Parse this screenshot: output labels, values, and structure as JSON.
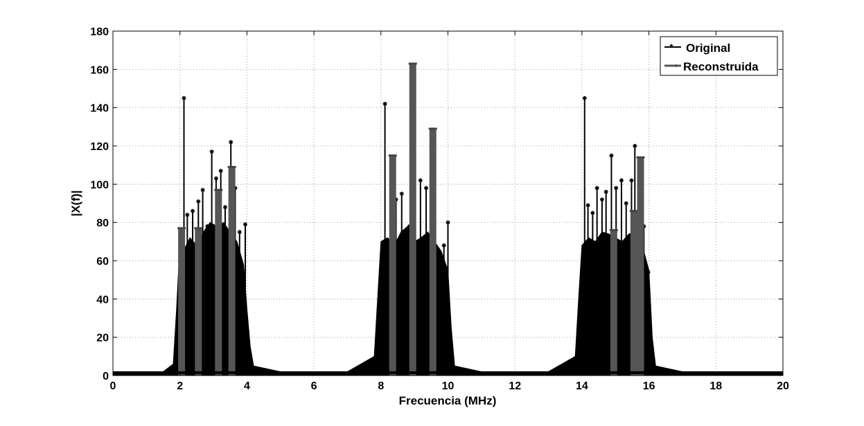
{
  "chart_data": {
    "type": "line",
    "title": "",
    "xlabel": "Frecuencia (MHz)",
    "ylabel": "|X(f)|",
    "xlim": [
      0,
      20
    ],
    "ylim": [
      0,
      180
    ],
    "xticks": [
      0,
      2,
      4,
      6,
      8,
      10,
      12,
      14,
      16,
      18,
      20
    ],
    "yticks": [
      0,
      20,
      40,
      60,
      80,
      100,
      120,
      140,
      160,
      180
    ],
    "grid": true,
    "legend_position": "top-right",
    "series": [
      {
        "name": "Original",
        "color": "#000000",
        "style": "stem",
        "marker": "asterisk",
        "x": [
          2.12,
          2.22,
          2.38,
          2.55,
          2.68,
          2.82,
          2.95,
          3.08,
          3.22,
          3.35,
          3.52,
          3.65,
          3.78,
          3.95,
          8.12,
          8.3,
          8.45,
          8.62,
          8.85,
          9.05,
          9.18,
          9.35,
          9.55,
          9.72,
          9.88,
          10.0,
          14.08,
          14.18,
          14.32,
          14.45,
          14.6,
          14.72,
          14.88,
          15.02,
          15.18,
          15.32,
          15.48,
          15.58,
          15.72,
          15.85,
          15.98
        ],
        "y": [
          145,
          84,
          86,
          91,
          97,
          78,
          117,
          103,
          107,
          88,
          122,
          98,
          75,
          79,
          142,
          70,
          92,
          95,
          78,
          63,
          102,
          98,
          79,
          64,
          68,
          80,
          145,
          89,
          85,
          98,
          92,
          96,
          115,
          98,
          102,
          90,
          102,
          120,
          72,
          78,
          54
        ],
        "envelope": {
          "x": [
            0,
            1.5,
            1.8,
            1.9,
            2.0,
            2.1,
            2.3,
            2.5,
            2.7,
            2.9,
            3.1,
            3.3,
            3.5,
            3.7,
            3.9,
            4.0,
            4.1,
            4.2,
            5.0,
            6.0,
            7.0,
            7.8,
            7.9,
            8.0,
            8.2,
            8.4,
            8.6,
            8.8,
            9.0,
            9.2,
            9.4,
            9.6,
            9.8,
            10.0,
            10.1,
            10.2,
            11.0,
            12.0,
            13.0,
            13.8,
            13.9,
            14.0,
            14.2,
            14.4,
            14.6,
            14.8,
            15.0,
            15.2,
            15.4,
            15.6,
            15.8,
            16.0,
            16.1,
            16.2,
            17.0,
            18.0,
            19.0,
            20.0
          ],
          "y": [
            2,
            2,
            6,
            35,
            70,
            65,
            72,
            68,
            75,
            80,
            78,
            80,
            75,
            70,
            58,
            35,
            15,
            5,
            2,
            2,
            2,
            10,
            40,
            70,
            72,
            68,
            75,
            78,
            70,
            72,
            75,
            70,
            65,
            55,
            25,
            5,
            2,
            2,
            2,
            10,
            40,
            68,
            72,
            70,
            75,
            74,
            72,
            70,
            74,
            75,
            68,
            55,
            20,
            5,
            2,
            2,
            2,
            2
          ]
        }
      },
      {
        "name": "Reconstruida",
        "color": "#555555",
        "style": "stem",
        "marker": "dot",
        "x": [
          2.05,
          2.55,
          3.15,
          3.55,
          8.35,
          8.95,
          9.55,
          14.95,
          15.55,
          15.75
        ],
        "y": [
          77,
          77,
          97,
          109,
          115,
          163,
          129,
          76,
          86,
          114
        ]
      }
    ]
  }
}
